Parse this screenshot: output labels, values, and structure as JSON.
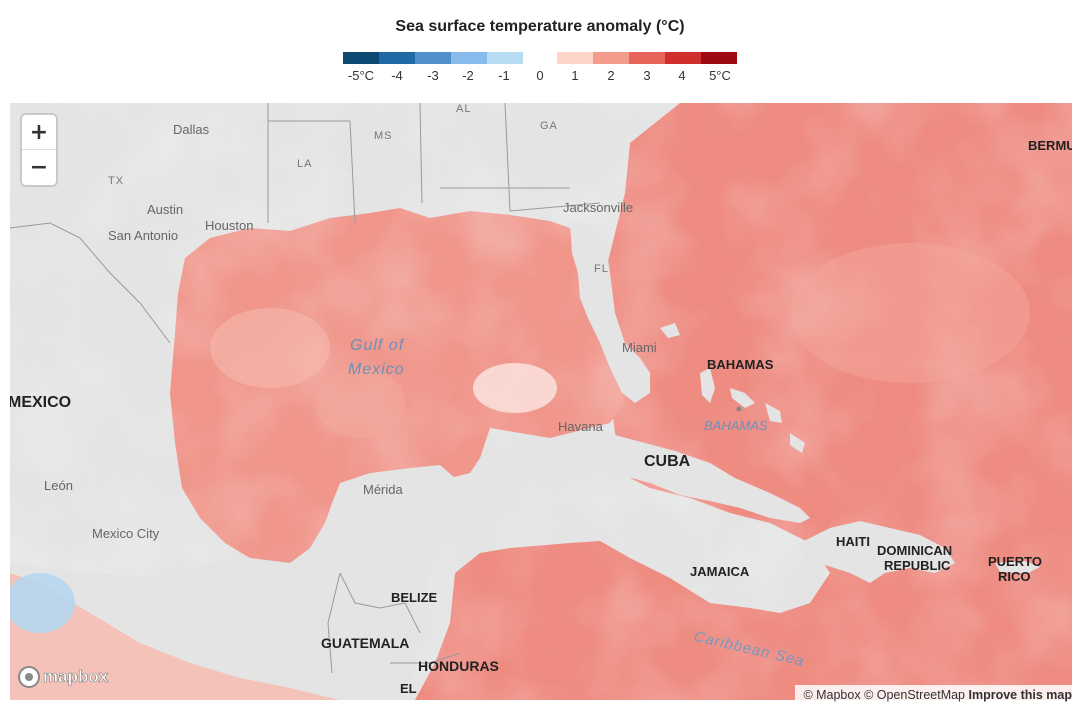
{
  "title": "Sea surface temperature anomaly (°C)",
  "legend": {
    "colors": [
      "#0d4a73",
      "#1f6aa5",
      "#4f8fcc",
      "#86bbec",
      "#b7ddf5",
      "#fcd4c8",
      "#f49c8b",
      "#e6645a",
      "#cf2f2d",
      "#9c0b12"
    ],
    "labels": [
      "-5°C",
      "-4",
      "-3",
      "-2",
      "-1",
      "0",
      "1",
      "2",
      "3",
      "4",
      "5°C"
    ]
  },
  "zoom": {
    "in_label": "+",
    "out_label": "−"
  },
  "places": {
    "dallas": "Dallas",
    "austin": "Austin",
    "san_antonio": "San Antonio",
    "houston": "Houston",
    "tx": "TX",
    "la": "LA",
    "ms": "MS",
    "al": "AL",
    "ga": "GA",
    "fl": "FL",
    "jacksonville": "Jacksonville",
    "miami": "Miami",
    "havana": "Havana",
    "merida": "Mérida",
    "leon": "León",
    "mexico_city": "Mexico City",
    "bermuda": "BERMU",
    "mexico": "MEXICO",
    "bahamas": "BAHAMAS",
    "bahamas_water": "BAHAMAS",
    "cuba": "CUBA",
    "haiti": "HAITI",
    "dominican_1": "DOMINICAN",
    "dominican_2": "REPUBLIC",
    "puerto_1": "PUERTO",
    "puerto_2": "RICO",
    "jamaica": "JAMAICA",
    "belize": "BELIZE",
    "guatemala": "GUATEMALA",
    "honduras": "HONDURAS",
    "el_salvador": "EL",
    "gulf_1": "Gulf of",
    "gulf_2": "Mexico",
    "caribbean": "Caribbean Sea"
  },
  "logo": "mapbox",
  "attribution": {
    "mapbox": "© Mapbox",
    "osm": "© OpenStreetMap",
    "improve": "Improve this map"
  }
}
